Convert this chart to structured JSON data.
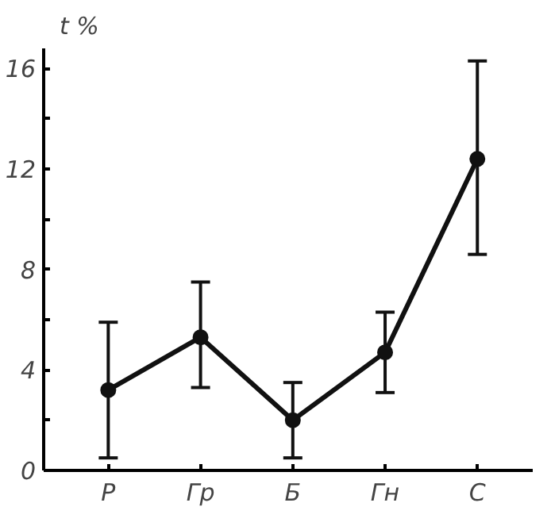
{
  "chart_data": {
    "type": "line",
    "ylabel": "t %",
    "categories": [
      "Р",
      "Гр",
      "Б",
      "Гн",
      "С"
    ],
    "series": [
      {
        "color": "#111111",
        "values": [
          3.2,
          5.3,
          2.0,
          4.7,
          12.4
        ],
        "errors": [
          [
            0.5,
            5.9
          ],
          [
            3.3,
            7.5
          ],
          [
            0.5,
            3.5
          ],
          [
            3.1,
            6.3
          ],
          [
            8.6,
            16.3
          ]
        ]
      }
    ],
    "ylim": [
      0,
      16.8
    ],
    "yticks": [
      0,
      {
        "value": 2,
        "label": null
      },
      4,
      {
        "value": 6,
        "label": null
      },
      8,
      {
        "value": 10,
        "label": null
      },
      12,
      {
        "value": 14,
        "label": null
      },
      16
    ],
    "marker": "circle",
    "line_style": "solid"
  }
}
